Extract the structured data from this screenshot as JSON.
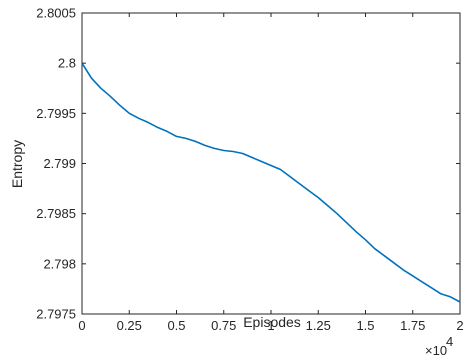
{
  "chart_data": {
    "type": "line",
    "title": "",
    "xlabel": "Episodes",
    "ylabel": "Entropy",
    "x_exponent_label": "×10",
    "x_exponent_power": "4",
    "xlim": [
      0,
      20000
    ],
    "ylim": [
      2.7975,
      2.8005
    ],
    "grid": false,
    "legend": "none",
    "colors": {
      "series": "#0072BD",
      "axis": "#262626"
    },
    "x_ticks": [
      {
        "value": 0,
        "label": "0"
      },
      {
        "value": 2500,
        "label": "0.25"
      },
      {
        "value": 5000,
        "label": "0.5"
      },
      {
        "value": 7500,
        "label": "0.75"
      },
      {
        "value": 10000,
        "label": "1"
      },
      {
        "value": 12500,
        "label": "1.25"
      },
      {
        "value": 15000,
        "label": "1.5"
      },
      {
        "value": 17500,
        "label": "1.75"
      },
      {
        "value": 20000,
        "label": "2"
      }
    ],
    "y_ticks": [
      {
        "value": 2.7975,
        "label": "2.7975"
      },
      {
        "value": 2.798,
        "label": "2.798"
      },
      {
        "value": 2.7985,
        "label": "2.7985"
      },
      {
        "value": 2.799,
        "label": "2.799"
      },
      {
        "value": 2.7995,
        "label": "2.7995"
      },
      {
        "value": 2.8,
        "label": "2.8"
      },
      {
        "value": 2.8005,
        "label": "2.8005"
      }
    ],
    "series": [
      {
        "x": [
          0,
          500,
          1000,
          1500,
          2000,
          2500,
          3000,
          3500,
          4000,
          4500,
          5000,
          5500,
          6000,
          6500,
          7000,
          7500,
          8000,
          8500,
          9000,
          9500,
          10000,
          10500,
          11000,
          11500,
          12000,
          12500,
          13000,
          13500,
          14000,
          14500,
          15000,
          15500,
          16000,
          16500,
          17000,
          17500,
          18000,
          18500,
          19000,
          19500,
          20000
        ],
        "y": [
          2.8,
          2.79985,
          2.79975,
          2.79967,
          2.79958,
          2.7995,
          2.79945,
          2.79941,
          2.79936,
          2.79932,
          2.79927,
          2.79925,
          2.79922,
          2.79918,
          2.79915,
          2.79913,
          2.79912,
          2.7991,
          2.79906,
          2.79902,
          2.79898,
          2.79894,
          2.79887,
          2.7988,
          2.79873,
          2.79866,
          2.79858,
          2.7985,
          2.79841,
          2.79832,
          2.79824,
          2.79815,
          2.79808,
          2.79801,
          2.79794,
          2.79788,
          2.79782,
          2.79776,
          2.7977,
          2.79767,
          2.79762
        ]
      }
    ]
  }
}
